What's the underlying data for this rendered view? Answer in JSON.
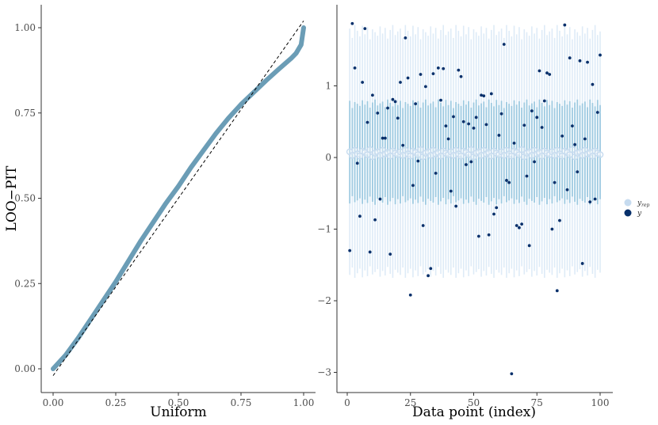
{
  "chart_data": [
    {
      "type": "line",
      "title": "",
      "xlabel": "Uniform",
      "ylabel": "LOO−PIT",
      "xlim": [
        0,
        1
      ],
      "ylim": [
        0,
        1
      ],
      "x_ticks": [
        "0.00",
        "0.25",
        "0.50",
        "0.75",
        "1.00"
      ],
      "y_ticks": [
        "0.00",
        "0.25",
        "0.50",
        "0.75",
        "1.00"
      ],
      "grid": false,
      "series": [
        {
          "role": "loo-pit",
          "color": "#6b9db6",
          "x": [
            0.0,
            0.05,
            0.1,
            0.15,
            0.2,
            0.25,
            0.3,
            0.35,
            0.4,
            0.45,
            0.5,
            0.55,
            0.6,
            0.65,
            0.7,
            0.75,
            0.8,
            0.85,
            0.9,
            0.95,
            0.97,
            0.99,
            1.0
          ],
          "y": [
            0.0,
            0.04,
            0.09,
            0.145,
            0.2,
            0.255,
            0.315,
            0.375,
            0.43,
            0.485,
            0.535,
            0.59,
            0.64,
            0.69,
            0.735,
            0.775,
            0.81,
            0.845,
            0.878,
            0.91,
            0.925,
            0.95,
            1.0
          ]
        },
        {
          "role": "uniform-reference",
          "color": "#000000",
          "dashed": true,
          "x": [
            0.0,
            1.0
          ],
          "y": [
            -0.02,
            1.02
          ]
        }
      ]
    },
    {
      "type": "scatter",
      "title": "",
      "xlabel": "Data point (index)",
      "ylabel": "",
      "xlim": [
        0,
        100
      ],
      "ylim": [
        -3.0,
        2.0
      ],
      "x_ticks": [
        "0",
        "25",
        "50",
        "75",
        "100"
      ],
      "y_ticks": [
        "1",
        "0",
        "−1",
        "−2",
        "−3"
      ],
      "grid": false,
      "legend": {
        "placement": "right",
        "entries": [
          {
            "label": "y",
            "subscript": "rep",
            "color": "#c6dbef"
          },
          {
            "label": "y",
            "subscript": "",
            "color": "#08306b"
          }
        ]
      },
      "yrep_summary": {
        "color_inner": "#9ecae1",
        "color_outer": "#deebf7",
        "median_base": 0.05,
        "inner": [
          -0.6,
          0.75
        ],
        "outer": [
          -1.6,
          1.75
        ]
      },
      "y_points": {
        "color": "#08306b",
        "x": [
          1,
          2,
          3,
          4,
          5,
          6,
          7,
          8,
          9,
          10,
          11,
          12,
          13,
          14,
          15,
          16,
          17,
          18,
          19,
          20,
          21,
          22,
          23,
          24,
          25,
          26,
          27,
          28,
          29,
          30,
          31,
          32,
          33,
          34,
          35,
          36,
          37,
          38,
          39,
          40,
          41,
          42,
          43,
          44,
          45,
          46,
          47,
          48,
          49,
          50,
          51,
          52,
          53,
          54,
          55,
          56,
          57,
          58,
          59,
          60,
          61,
          62,
          63,
          64,
          65,
          66,
          67,
          68,
          69,
          70,
          71,
          72,
          73,
          74,
          75,
          76,
          77,
          78,
          79,
          80,
          81,
          82,
          83,
          84,
          85,
          86,
          87,
          88,
          89,
          90,
          91,
          92,
          93,
          94,
          95,
          96,
          97,
          98,
          99,
          100
        ],
        "y": [
          -1.3,
          1.87,
          1.25,
          -0.08,
          -0.82,
          1.05,
          1.8,
          0.49,
          -1.32,
          0.87,
          -0.87,
          0.62,
          -0.58,
          0.27,
          0.27,
          0.69,
          -1.35,
          0.81,
          0.78,
          0.55,
          1.05,
          0.17,
          1.67,
          1.11,
          -1.92,
          -0.39,
          0.75,
          -0.05,
          1.16,
          -0.95,
          0.99,
          -1.65,
          -1.55,
          1.17,
          -0.22,
          1.25,
          0.8,
          1.24,
          0.44,
          0.26,
          -0.47,
          0.57,
          -0.68,
          1.22,
          1.13,
          0.5,
          -0.1,
          0.47,
          -0.06,
          0.41,
          0.56,
          -1.1,
          0.87,
          0.86,
          0.46,
          -1.08,
          0.89,
          -0.79,
          -0.7,
          0.31,
          0.61,
          1.58,
          -0.32,
          -0.35,
          -3.02,
          0.2,
          -0.95,
          -0.98,
          -0.93,
          0.45,
          -0.26,
          -1.23,
          0.65,
          -0.06,
          0.56,
          1.21,
          0.42,
          0.79,
          1.18,
          1.16,
          -1.0,
          -0.35,
          -1.86,
          -0.88,
          0.3,
          1.85,
          -0.45,
          1.39,
          0.44,
          0.18,
          -0.2,
          1.35,
          -1.48,
          0.26,
          1.33,
          -0.62,
          1.02,
          -0.58,
          0.63,
          1.43
        ]
      }
    }
  ]
}
